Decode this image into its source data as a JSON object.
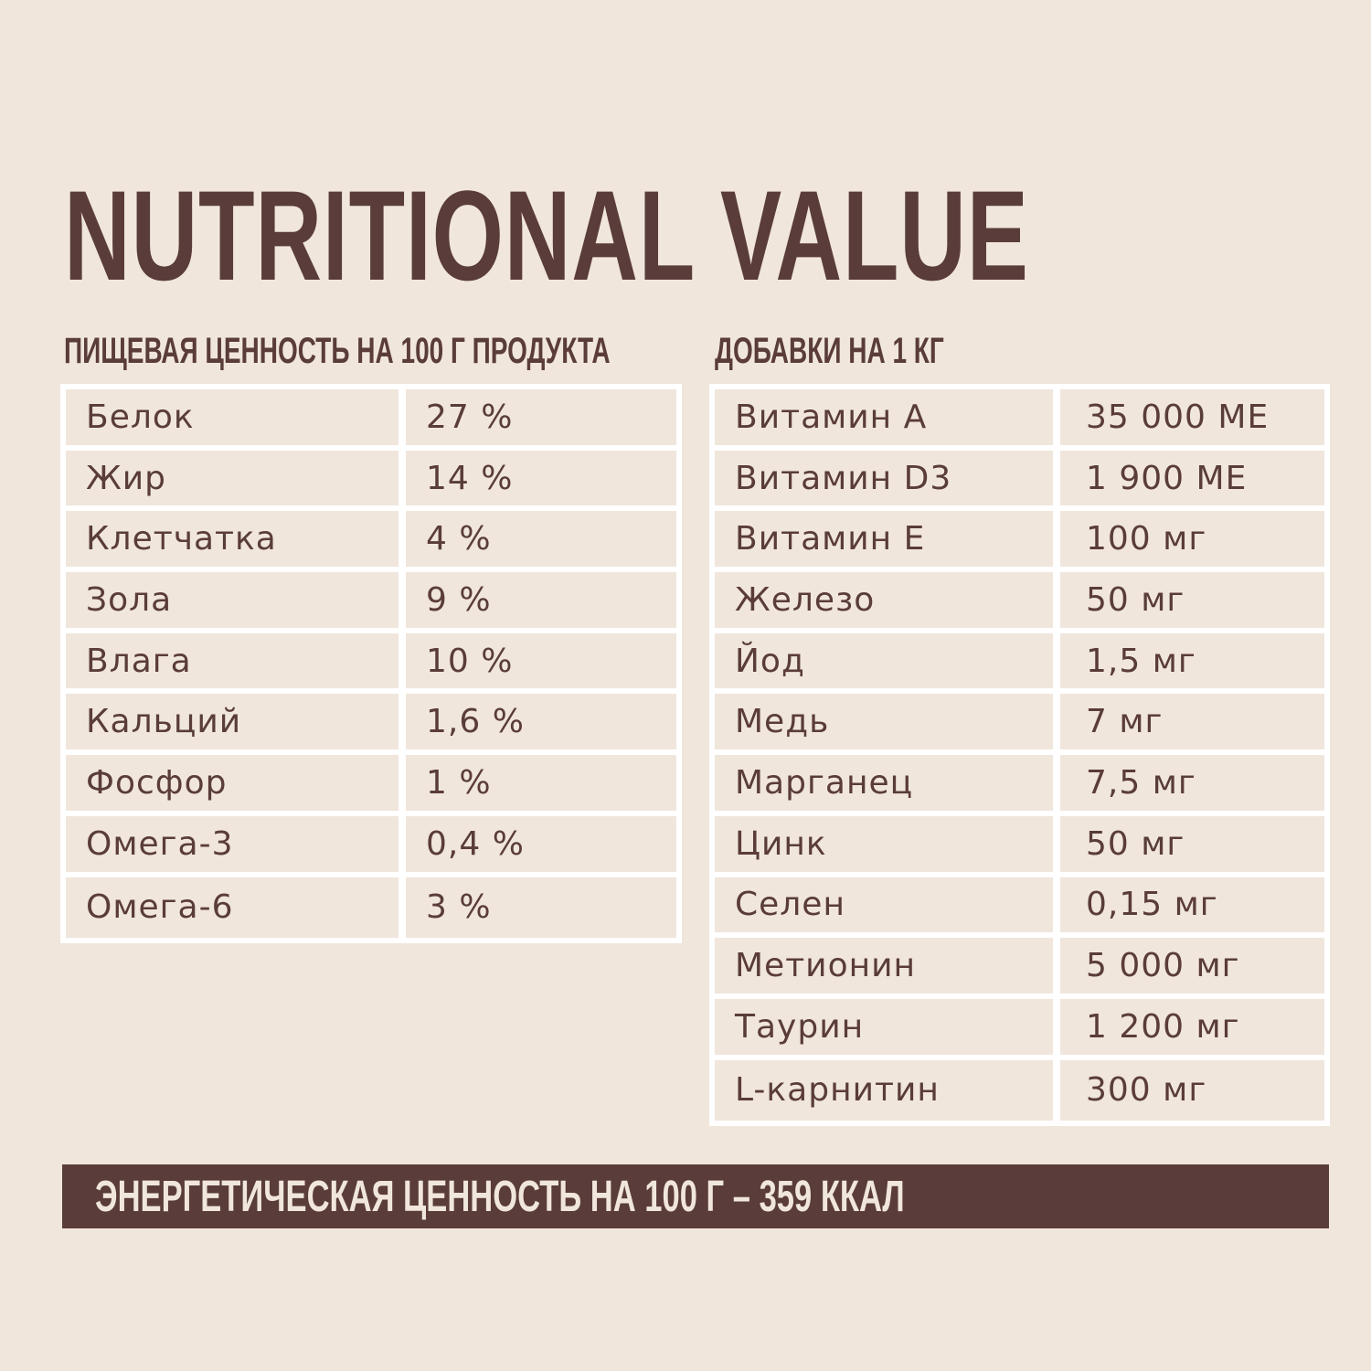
{
  "title": "NUTRITIONAL VALUE",
  "nutrition": {
    "heading": "ПИЩЕВАЯ ЦЕННОСТЬ НА 100 Г ПРОДУКТА",
    "rows": [
      {
        "name": "Белок",
        "value": "27 %"
      },
      {
        "name": "Жир",
        "value": "14 %"
      },
      {
        "name": "Клетчатка",
        "value": "4 %"
      },
      {
        "name": "Зола",
        "value": "9 %"
      },
      {
        "name": "Влага",
        "value": "10 %"
      },
      {
        "name": "Кальций",
        "value": "1,6 %"
      },
      {
        "name": "Фосфор",
        "value": "1 %"
      },
      {
        "name": "Омега-3",
        "value": "0,4 %"
      },
      {
        "name": "Омега-6",
        "value": "3 %"
      }
    ]
  },
  "additives": {
    "heading": "ДОБАВКИ НА 1 КГ",
    "rows": [
      {
        "name": "Витамин А",
        "value": "35 000 МЕ"
      },
      {
        "name": "Витамин D3",
        "value": "1 900 МЕ"
      },
      {
        "name": "Витамин Е",
        "value": "100 мг"
      },
      {
        "name": "Железо",
        "value": "50 мг"
      },
      {
        "name": "Йод",
        "value": "1,5 мг"
      },
      {
        "name": "Медь",
        "value": "7 мг"
      },
      {
        "name": "Марганец",
        "value": "7,5 мг"
      },
      {
        "name": "Цинк",
        "value": "50 мг"
      },
      {
        "name": "Селен",
        "value": "0,15 мг"
      },
      {
        "name": "Метионин",
        "value": "5 000 мг"
      },
      {
        "name": "Таурин",
        "value": "1 200 мг"
      },
      {
        "name": "L-карнитин",
        "value": "300 мг"
      }
    ]
  },
  "energy": "ЭНЕРГЕТИЧЕСКАЯ ЦЕННОСТЬ НА 100 Г – 359 ККАЛ",
  "colors": {
    "background": "#f0e6dc",
    "text": "#5a3c3a",
    "grid": "#ffffff"
  }
}
